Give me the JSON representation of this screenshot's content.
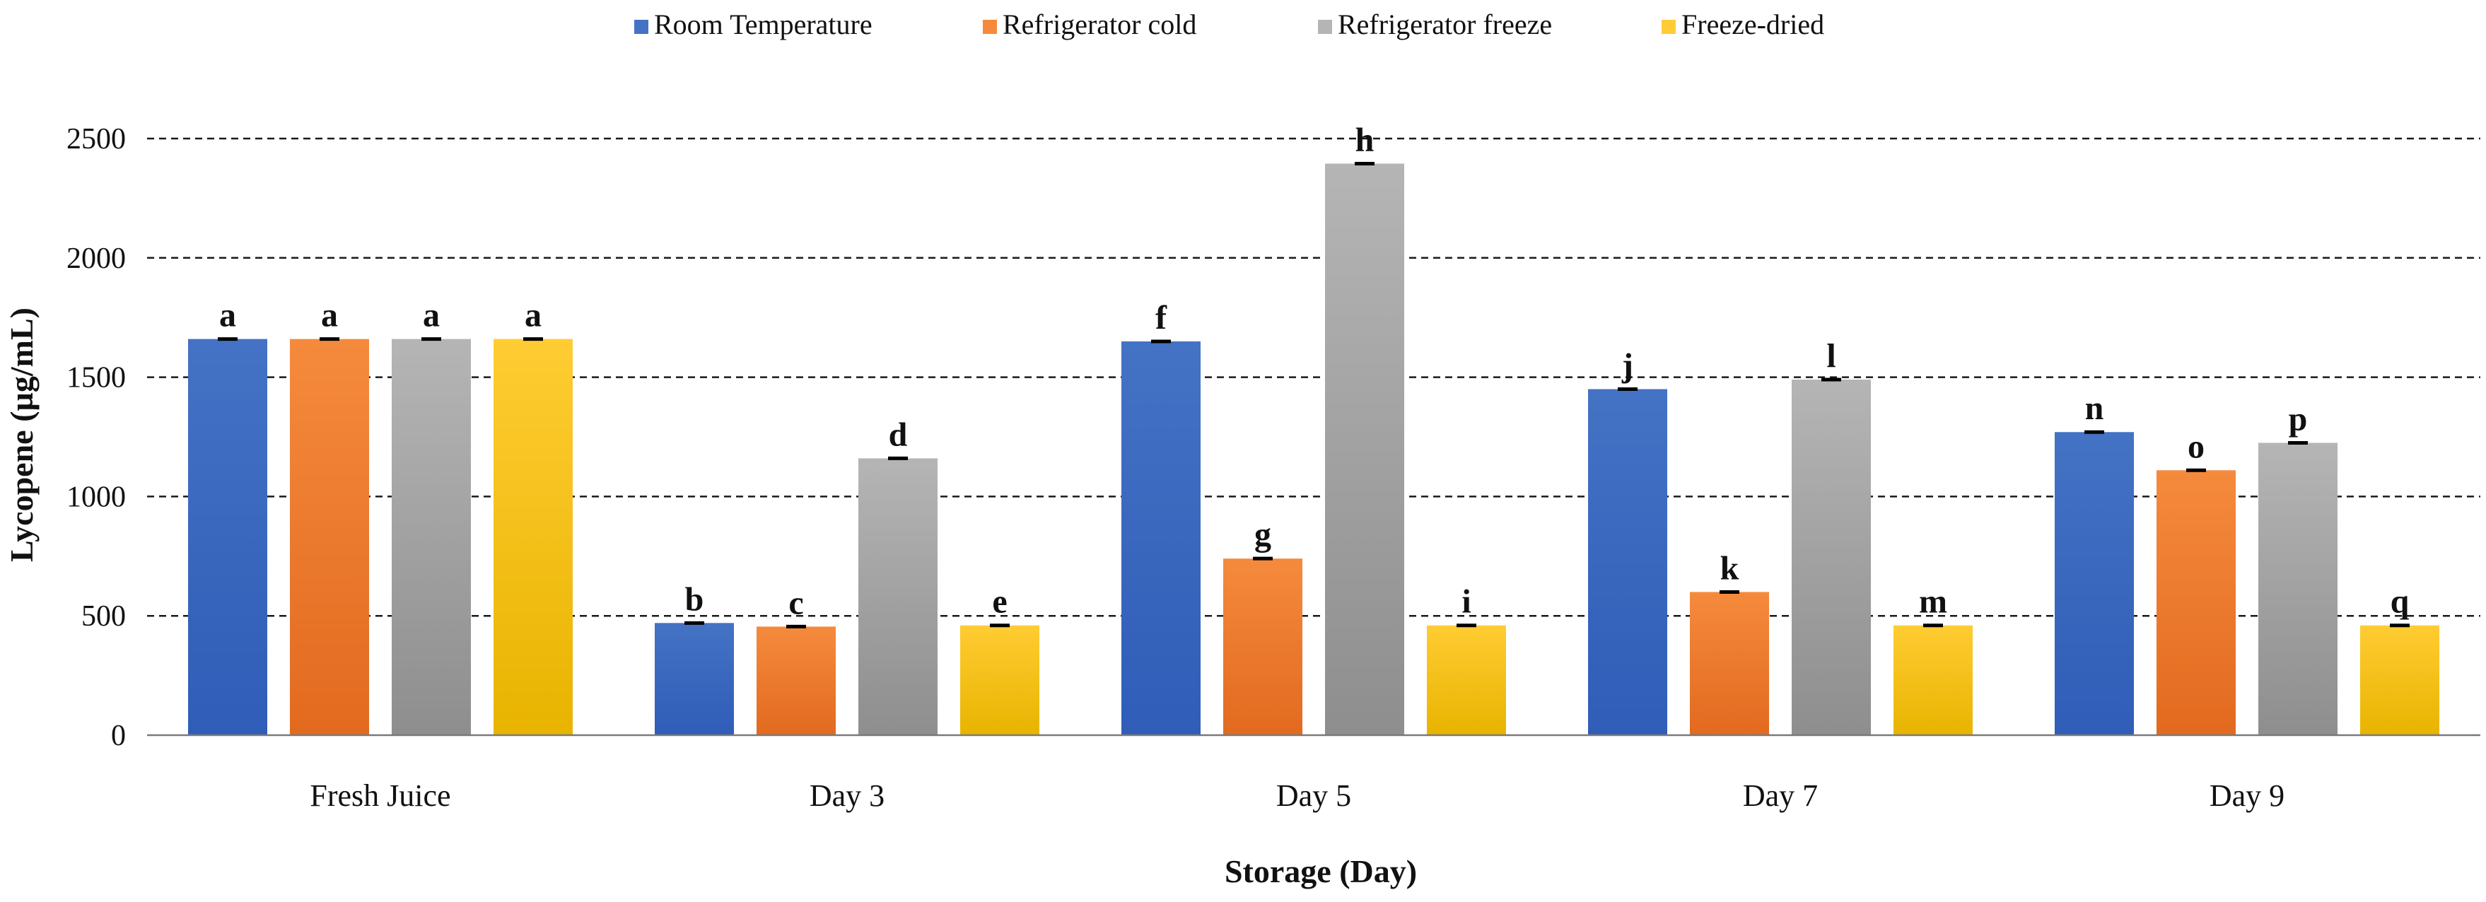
{
  "chart_data": {
    "type": "bar",
    "title": "",
    "xlabel": "Storage (Day)",
    "ylabel": "Lycopene (µg/mL)",
    "ylim": [
      0,
      2500
    ],
    "yticks": [
      0,
      500,
      1000,
      1500,
      2000,
      2500
    ],
    "grid": "dashed horizontal",
    "legend_position": "top",
    "categories": [
      "Fresh Juice",
      "Day 3",
      "Day 5",
      "Day 7",
      "Day 9"
    ],
    "series": [
      {
        "name": "Room Temperature",
        "color": "#4472C4",
        "color_dark": "#2F5DB8",
        "values": [
          1660,
          470,
          1650,
          1450,
          1270
        ],
        "labels": [
          "a",
          "b",
          "f",
          "j",
          "n"
        ]
      },
      {
        "name": "Refrigerator cold",
        "color": "#F58A3D",
        "color_dark": "#E26A1F",
        "values": [
          1660,
          455,
          740,
          600,
          1110
        ],
        "labels": [
          "a",
          "c",
          "g",
          "k",
          "o"
        ]
      },
      {
        "name": "Refrigerator freeze",
        "color": "#B5B5B5",
        "color_dark": "#8E8E8E",
        "values": [
          1660,
          1160,
          2395,
          1490,
          1225
        ],
        "labels": [
          "a",
          "d",
          "h",
          "l",
          "p"
        ]
      },
      {
        "name": "Freeze-dried",
        "color": "#FFCC33",
        "color_dark": "#E8B400",
        "values": [
          1660,
          460,
          460,
          460,
          460
        ],
        "labels": [
          "a",
          "e",
          "i",
          "m",
          "q"
        ]
      }
    ]
  }
}
